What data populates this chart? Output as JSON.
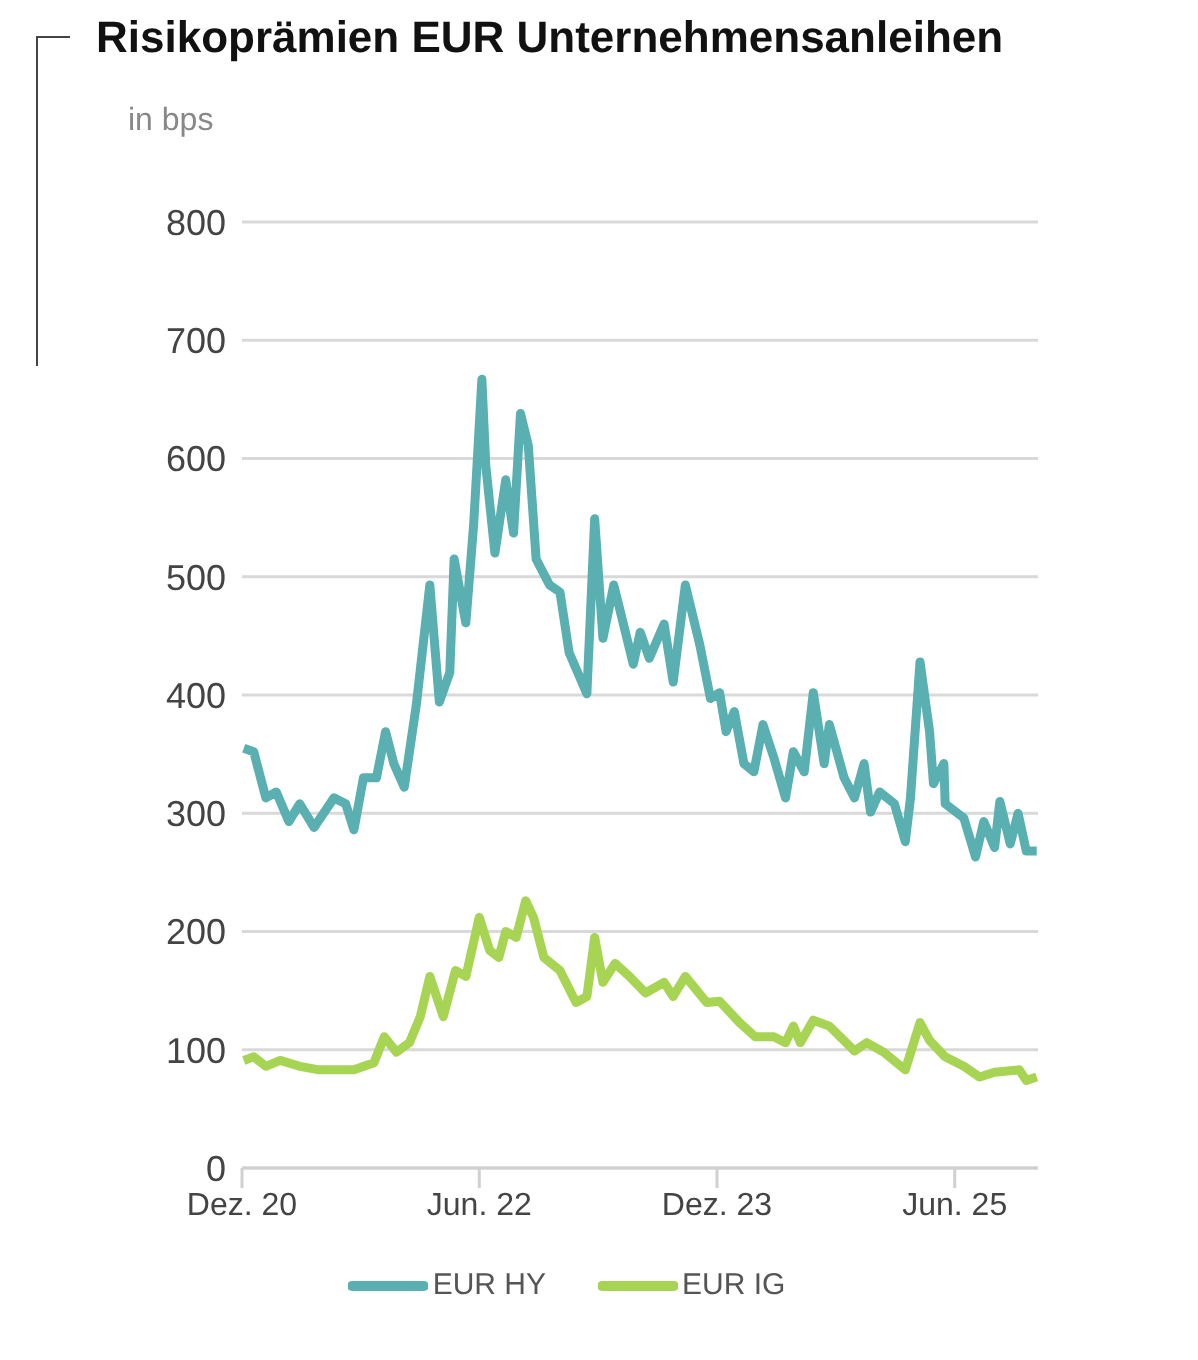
{
  "chart_data": {
    "type": "line",
    "title": "Risikoprämien EUR Unternehmensanleihen",
    "ylabel": "in bps",
    "xlim": [
      "2020-12-01",
      "2025-12-10"
    ],
    "xticks": [
      {
        "value": "2020-12-01",
        "label": "Dez. 20"
      },
      {
        "value": "2022-06-01",
        "label": "Jun. 22"
      },
      {
        "value": "2023-12-01",
        "label": "Dez. 23"
      },
      {
        "value": "2025-06-01",
        "label": "Jun. 25"
      }
    ],
    "ylim": [
      0,
      800
    ],
    "yticks": [
      0,
      100,
      200,
      300,
      400,
      500,
      600,
      700,
      800
    ],
    "grid": "y",
    "legend": "bottom",
    "line_style": "solid",
    "series": [
      {
        "name": "EUR HY",
        "color": "#5aafb0",
        "x": [
          "2020-12-05",
          "2020-12-28",
          "2021-01-25",
          "2021-02-18",
          "2021-03-19",
          "2021-04-13",
          "2021-05-16",
          "2021-07-01",
          "2021-07-28",
          "2021-08-16",
          "2021-09-07",
          "2021-10-07",
          "2021-10-28",
          "2021-11-16",
          "2021-12-10",
          "2022-01-07",
          "2022-02-07",
          "2022-03-01",
          "2022-03-25",
          "2022-04-04",
          "2022-05-01",
          "2022-05-19",
          "2022-06-07",
          "2022-06-16",
          "2022-07-07",
          "2022-08-01",
          "2022-08-19",
          "2022-09-04",
          "2022-09-22",
          "2022-10-10",
          "2022-11-10",
          "2022-12-04",
          "2022-12-25",
          "2023-02-04",
          "2023-02-22",
          "2023-03-13",
          "2023-04-07",
          "2023-05-04",
          "2023-05-22",
          "2023-06-07",
          "2023-06-28",
          "2023-08-01",
          "2023-08-22",
          "2023-09-19",
          "2023-10-22",
          "2023-11-16",
          "2023-12-07",
          "2023-12-22",
          "2024-01-10",
          "2024-02-01",
          "2024-02-24",
          "2024-03-16",
          "2024-04-10",
          "2024-05-07",
          "2024-05-25",
          "2024-06-19",
          "2024-07-10",
          "2024-08-04",
          "2024-08-16",
          "2024-09-19",
          "2024-10-13",
          "2024-11-04",
          "2024-11-19",
          "2024-12-10",
          "2025-01-13",
          "2025-02-07",
          "2025-02-19",
          "2025-03-13",
          "2025-04-04",
          "2025-04-13",
          "2025-05-07",
          "2025-05-10",
          "2025-06-22",
          "2025-07-19",
          "2025-08-07",
          "2025-09-01",
          "2025-09-13",
          "2025-10-07",
          "2025-10-25",
          "2025-11-13",
          "2025-12-07"
        ],
        "values": [
          355,
          352,
          313,
          318,
          293,
          308,
          288,
          313,
          308,
          286,
          330,
          330,
          369,
          342,
          322,
          392,
          493,
          394,
          419,
          515,
          461,
          544,
          667,
          594,
          520,
          582,
          537,
          638,
          611,
          515,
          493,
          487,
          436,
          401,
          549,
          448,
          493,
          453,
          426,
          453,
          431,
          460,
          411,
          493,
          443,
          397,
          402,
          369,
          386,
          342,
          335,
          375,
          347,
          313,
          352,
          335,
          402,
          342,
          375,
          330,
          313,
          342,
          301,
          318,
          308,
          276,
          313,
          428,
          369,
          325,
          342,
          308,
          296,
          263,
          293,
          271,
          310,
          274,
          300,
          268,
          268
        ]
      },
      {
        "name": "EUR IG",
        "color": "#a8d454",
        "x": [
          "2020-12-05",
          "2020-12-28",
          "2021-01-25",
          "2021-02-27",
          "2021-04-13",
          "2021-05-28",
          "2021-08-16",
          "2021-10-01",
          "2021-10-25",
          "2021-11-22",
          "2021-12-22",
          "2022-01-16",
          "2022-02-07",
          "2022-03-10",
          "2022-04-07",
          "2022-05-01",
          "2022-06-01",
          "2022-06-25",
          "2022-07-16",
          "2022-08-01",
          "2022-08-25",
          "2022-09-16",
          "2022-10-04",
          "2022-10-28",
          "2022-12-04",
          "2023-01-10",
          "2023-02-04",
          "2023-02-22",
          "2023-03-13",
          "2023-04-10",
          "2023-05-13",
          "2023-06-19",
          "2023-08-01",
          "2023-08-22",
          "2023-09-19",
          "2023-11-07",
          "2023-12-07",
          "2024-01-22",
          "2024-02-27",
          "2024-04-10",
          "2024-05-07",
          "2024-05-25",
          "2024-06-10",
          "2024-07-10",
          "2024-08-16",
          "2024-10-13",
          "2024-11-10",
          "2024-12-19",
          "2025-02-07",
          "2025-03-13",
          "2025-04-04",
          "2025-05-10",
          "2025-06-22",
          "2025-07-28",
          "2025-09-01",
          "2025-10-28",
          "2025-11-13",
          "2025-12-07"
        ],
        "values": [
          91,
          94,
          86,
          91,
          86,
          83,
          83,
          89,
          111,
          98,
          106,
          128,
          162,
          128,
          167,
          162,
          212,
          184,
          178,
          200,
          195,
          226,
          212,
          178,
          167,
          140,
          145,
          195,
          157,
          173,
          162,
          148,
          157,
          145,
          162,
          140,
          141,
          123,
          111,
          111,
          106,
          120,
          106,
          125,
          120,
          99,
          106,
          98,
          83,
          123,
          108,
          94,
          86,
          77,
          81,
          83,
          74,
          77
        ]
      }
    ]
  }
}
